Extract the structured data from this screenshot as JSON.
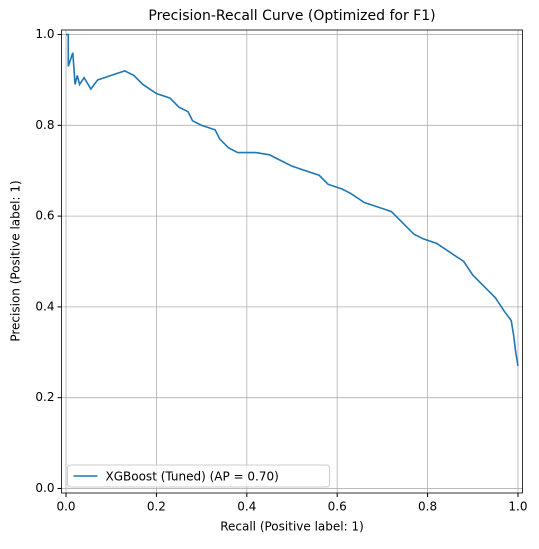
{
  "chart_data": {
    "type": "line",
    "title": "Precision-Recall Curve (Optimized for F1)",
    "x_label": "Recall (Positive label: 1)",
    "y_label": "Precision (Positive label: 1)",
    "x": [
      0.0,
      0.005,
      0.005,
      0.015,
      0.02,
      0.025,
      0.03,
      0.04,
      0.055,
      0.07,
      0.1,
      0.13,
      0.15,
      0.17,
      0.2,
      0.23,
      0.25,
      0.27,
      0.28,
      0.3,
      0.33,
      0.34,
      0.36,
      0.38,
      0.42,
      0.45,
      0.48,
      0.5,
      0.53,
      0.56,
      0.58,
      0.61,
      0.63,
      0.66,
      0.69,
      0.72,
      0.74,
      0.77,
      0.79,
      0.82,
      0.85,
      0.88,
      0.9,
      0.93,
      0.95,
      0.97,
      0.985,
      0.99,
      0.995,
      1.0
    ],
    "series": [
      {
        "name": "XGBoost (Tuned) (AP = 0.70)",
        "color": "#1f77b4",
        "values": [
          1.0,
          1.0,
          0.93,
          0.96,
          0.89,
          0.91,
          0.89,
          0.905,
          0.88,
          0.9,
          0.91,
          0.92,
          0.91,
          0.89,
          0.87,
          0.86,
          0.84,
          0.83,
          0.81,
          0.8,
          0.79,
          0.77,
          0.75,
          0.74,
          0.74,
          0.735,
          0.72,
          0.71,
          0.7,
          0.69,
          0.67,
          0.66,
          0.65,
          0.63,
          0.62,
          0.61,
          0.59,
          0.56,
          0.55,
          0.54,
          0.52,
          0.5,
          0.47,
          0.44,
          0.42,
          0.39,
          0.37,
          0.34,
          0.3,
          0.27
        ]
      }
    ],
    "xlim": [
      -0.01,
      1.01
    ],
    "ylim": [
      -0.01,
      1.01
    ],
    "xticks": [
      {
        "value": 0,
        "label": "0.0"
      },
      0.2,
      0.4,
      0.6,
      0.8,
      {
        "value": 1,
        "label": "1.0"
      }
    ],
    "yticks": [
      {
        "value": 0,
        "label": "0.0"
      },
      0.2,
      0.4,
      0.6,
      0.8,
      {
        "value": 1,
        "label": "1.0"
      }
    ],
    "grid": true,
    "legend_loc": "lower left"
  }
}
